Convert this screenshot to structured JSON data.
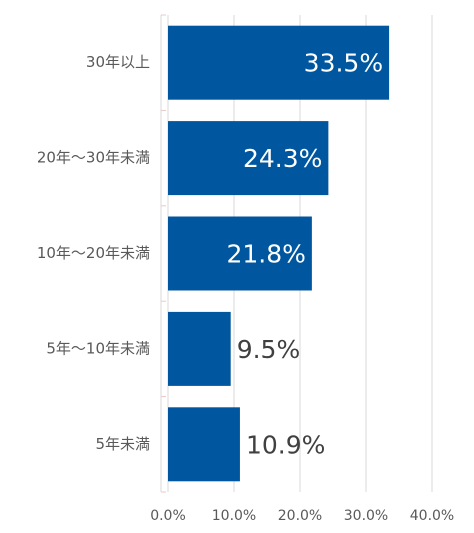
{
  "chart_data": {
    "type": "hbar",
    "categories": [
      "30年以上",
      "20年～30年未満",
      "10年～20年未満",
      "5年～10年未満",
      "5年未満"
    ],
    "values": [
      33.5,
      24.3,
      21.8,
      9.5,
      10.9
    ],
    "value_labels": [
      "33.5%",
      "24.3%",
      "21.8%",
      "9.5%",
      "10.9%"
    ],
    "color": "#00579f",
    "xlim": [
      0,
      40
    ],
    "xticks": [
      {
        "value": 0,
        "label": "0.0%"
      },
      {
        "value": 10,
        "label": "10.0%"
      },
      {
        "value": 20,
        "label": "20.0%"
      },
      {
        "value": 30,
        "label": "30.0%"
      },
      {
        "value": 40,
        "label": "40.0%"
      }
    ],
    "grid": true
  }
}
